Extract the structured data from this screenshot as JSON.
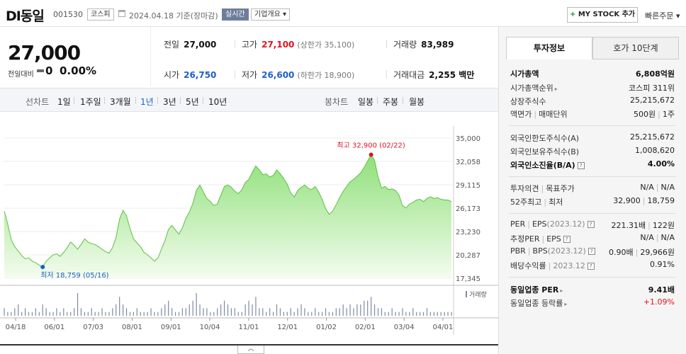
{
  "header": {
    "company": "DI동일",
    "code": "001530",
    "market": "코스피",
    "date": "2024.04.18",
    "date_suffix": "기준(장마감)",
    "live_label": "실시간",
    "info_label": "기업개요 ▾",
    "mystock_plus": "+",
    "mystock_label": "MY STOCK 추가",
    "quick_order": "빠른주문 ▾"
  },
  "price": {
    "current": "27,000",
    "change_label": "전일대비",
    "change": "0",
    "change_pct": "0.00%"
  },
  "stats": {
    "prev_label": "전일",
    "prev": "27,000",
    "high_label": "고가",
    "high": "27,100",
    "upper_limit": "(상한가 35,100)",
    "volume_label": "거래량",
    "volume": "83,989",
    "open_label": "시가",
    "open": "26,750",
    "low_label": "저가",
    "low": "26,600",
    "lower_limit": "(하한가 18,900)",
    "amount_label": "거래대금",
    "amount": "2,255 백만"
  },
  "periods": {
    "line_label": "선차트",
    "items": [
      "1일",
      "1주일",
      "3개월",
      "1년",
      "3년",
      "5년",
      "10년"
    ],
    "active": "1년",
    "candle_label": "봉차트",
    "candle_items": [
      "일봉",
      "주봉",
      "월봉"
    ]
  },
  "chart_data": {
    "type": "area",
    "x_ticks": [
      "04/18",
      "06/01",
      "07/03",
      "08/01",
      "09/01",
      "10/04",
      "11/01",
      "12/01",
      "01/02",
      "02/01",
      "03/04",
      "04/01"
    ],
    "y_ticks": [
      "35,000",
      "32,058",
      "29,115",
      "26,173",
      "23,230",
      "20,287",
      "17,345"
    ],
    "ylim": [
      17345,
      35000
    ],
    "high_label": "최고 32,900 (02/22)",
    "low_label": "최저 18,759 (05/16)",
    "volume_label": "거래량",
    "series": [
      {
        "values": [
          25800,
          24200,
          22200,
          21300,
          20800,
          20200,
          19800,
          19900,
          19500,
          19300,
          19000,
          18759,
          19500,
          19900,
          20300,
          20400,
          20100,
          20600,
          21200,
          21900,
          21500,
          21000,
          21600,
          22300,
          21900,
          21700,
          21600,
          21300,
          21000,
          20700,
          20500,
          21200,
          22500,
          24800,
          25900,
          25200,
          23600,
          22300,
          21800,
          21300,
          20600,
          20300,
          19900,
          19500,
          19900,
          21000,
          22100,
          23500,
          24000,
          23400,
          22900,
          23700,
          24900,
          25700,
          26800,
          28400,
          29100,
          28200,
          27400,
          27000,
          26500,
          26700,
          27800,
          28900,
          29100,
          28800,
          28300,
          28000,
          28500,
          29400,
          29800,
          30700,
          31500,
          31000,
          30400,
          30500,
          30100,
          30300,
          31000,
          30500,
          29900,
          29200,
          28100,
          27600,
          28400,
          28800,
          29100,
          28700,
          28500,
          28900,
          28200,
          27300,
          26100,
          25400,
          25800,
          26600,
          27500,
          28300,
          28900,
          29500,
          29800,
          30200,
          30600,
          31300,
          32100,
          32900,
          32200,
          30100,
          28700,
          28900,
          28500,
          28600,
          28400,
          27800,
          26500,
          26200,
          26700,
          26900,
          27200,
          27300,
          27000,
          27400,
          27600,
          27400,
          27500,
          27300,
          27200,
          27200,
          27000
        ]
      }
    ],
    "volumes": [
      2,
      1,
      1,
      2,
      3,
      1,
      2,
      1,
      1,
      2,
      1,
      3,
      2,
      1,
      1,
      2,
      1,
      2,
      1,
      1,
      2,
      6,
      2,
      1,
      1,
      2,
      1,
      1,
      2,
      1,
      1,
      2,
      3,
      5,
      3,
      2,
      1,
      1,
      2,
      1,
      1,
      1,
      2,
      1,
      1,
      2,
      3,
      4,
      2,
      1,
      1,
      2,
      2,
      3,
      4,
      6,
      3,
      2,
      2,
      1,
      1,
      2,
      3,
      4,
      3,
      2,
      2,
      1,
      1,
      3,
      4,
      3,
      5,
      2,
      2,
      1,
      2,
      1,
      3,
      2,
      1,
      1,
      2,
      1,
      2,
      3,
      2,
      1,
      1,
      2,
      1,
      1,
      2,
      1,
      1,
      2,
      2,
      3,
      2,
      3,
      2,
      3,
      3,
      4,
      4,
      5,
      3,
      2,
      2,
      1,
      1,
      2,
      1,
      1,
      2,
      1,
      1,
      2,
      1,
      1,
      1,
      2,
      1,
      1,
      1,
      1,
      1,
      1,
      1
    ]
  },
  "side": {
    "tab_invest": "투자정보",
    "tab_quote": "호가 10단계",
    "market_cap_label": "시가총액",
    "market_cap": "6,808억원",
    "cap_rank_label": "시가총액순위",
    "cap_rank": "코스피 311위",
    "shares_label": "상장주식수",
    "shares": "25,215,672",
    "par_label": "액면가",
    "unit_label": "매매단위",
    "par": "500원",
    "unit": "1주",
    "foreign_limit_label": "외국인한도주식수(A)",
    "foreign_limit": "25,215,672",
    "foreign_hold_label": "외국인보유주식수(B)",
    "foreign_hold": "1,008,620",
    "foreign_ratio_label": "외국인소진율(B/A)",
    "foreign_ratio": "4.00%",
    "opinion_label": "투자의견",
    "target_label": "목표주가",
    "opinion": "N/A",
    "target": "N/A",
    "w52_high_label": "52주최고",
    "w52_low_label": "최저",
    "w52_high": "32,900",
    "w52_low": "18,759",
    "per_label": "PER",
    "eps_label": "EPS",
    "eps_period": "(2023.12)",
    "per": "221.31배",
    "eps": "122원",
    "est_per_label": "추정PER",
    "est_eps_label": "EPS",
    "est_per": "N/A",
    "est_eps": "N/A",
    "pbr_label": "PBR",
    "bps_label": "BPS",
    "bps_period": "(2023.12)",
    "pbr": "0.90배",
    "bps": "29,966원",
    "div_label": "배당수익률",
    "div_period": "2023.12",
    "div": "0.91%",
    "ind_per_label": "동일업종 PER",
    "ind_per": "9.41배",
    "ind_chg_label": "동일업종 등락률",
    "ind_chg": "+1.09%"
  }
}
